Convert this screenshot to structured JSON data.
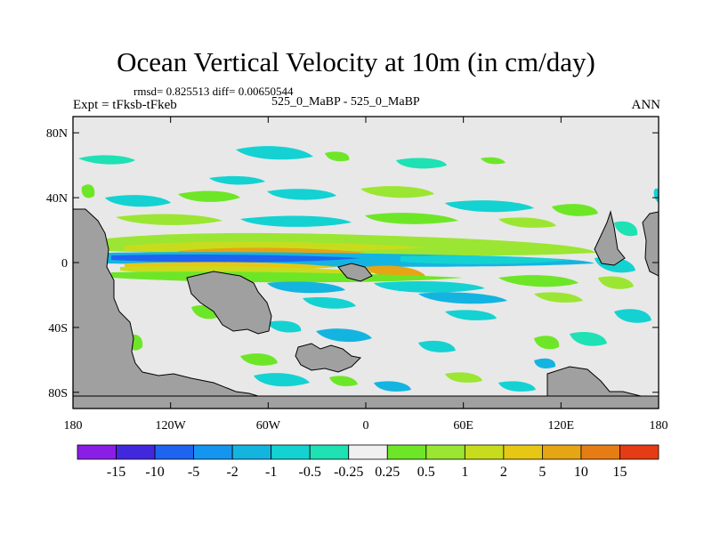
{
  "chart_data": {
    "type": "heatmap",
    "title": "Ocean Vertical Velocity at 10m (in cm/day)",
    "stats_line": "rmsd= 0.825513 diff= 0.00650544",
    "experiment_label": "Expt = tFksb-tFkeb",
    "case_label": "525_0_MaBP - 525_0_MaBP",
    "season_label": "ANN",
    "x_ticks": [
      "180",
      "120W",
      "60W",
      "0",
      "60E",
      "120E",
      "180"
    ],
    "y_ticks": [
      "80N",
      "40N",
      "0",
      "40S",
      "80S"
    ],
    "x_range": [
      -180,
      180
    ],
    "y_range": [
      -90,
      90
    ],
    "colorbar": {
      "labels": [
        "-15",
        "-10",
        "-5",
        "-2",
        "-1",
        "-0.5",
        "-0.25",
        "0.25",
        "0.5",
        "1",
        "2",
        "5",
        "10",
        "15"
      ],
      "colors": [
        "#8a1ee6",
        "#4228dc",
        "#1e64f0",
        "#1496f0",
        "#14b4e1",
        "#14d2d2",
        "#1ee1b4",
        "#f0f0f0",
        "#6ee628",
        "#9be632",
        "#c8dc1e",
        "#e6c814",
        "#e6a514",
        "#e67d14",
        "#e63c14"
      ]
    },
    "land_color": "#a0a0a0",
    "ocean_neutral_color": "#e8e8e8"
  }
}
